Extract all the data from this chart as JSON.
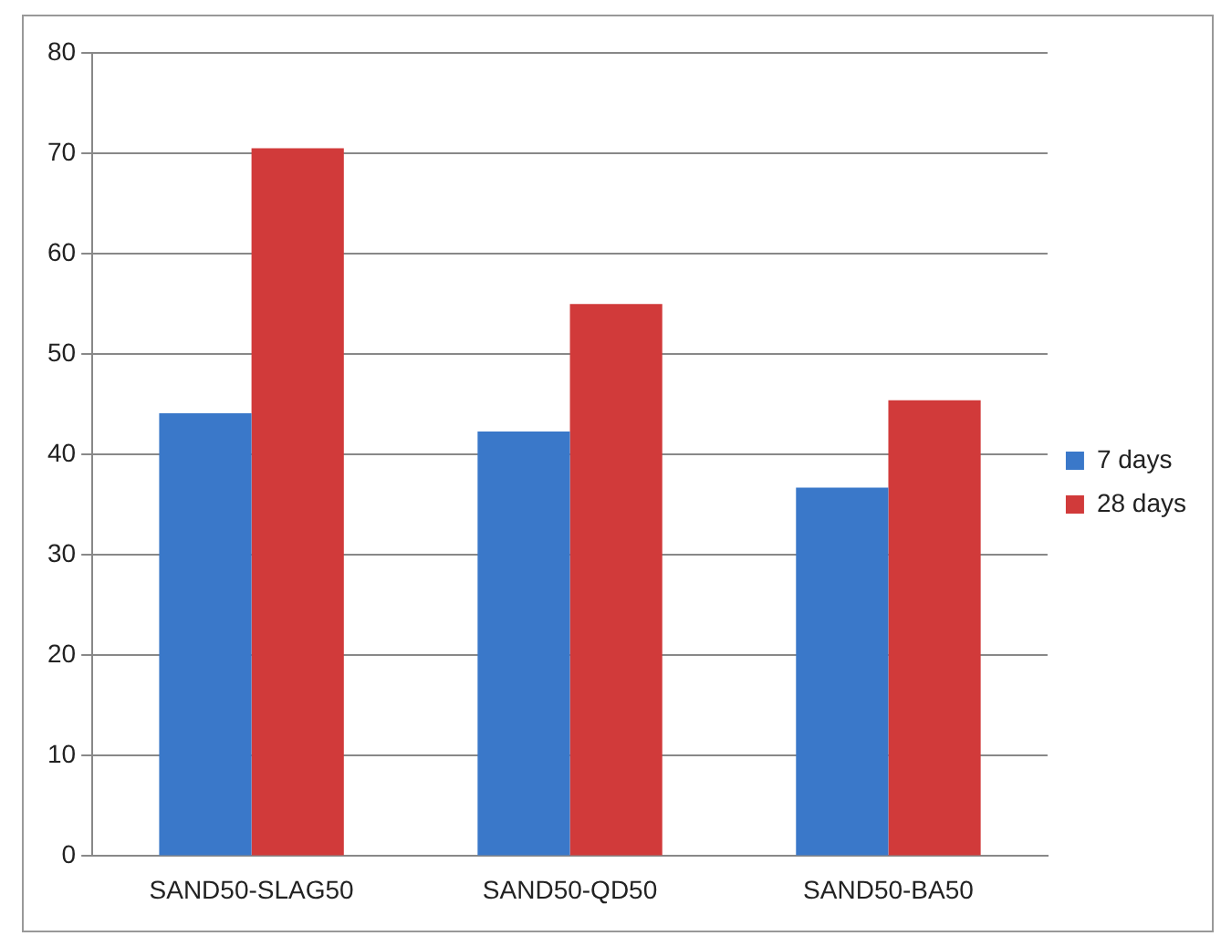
{
  "chart_data": {
    "type": "bar",
    "categories": [
      "SAND50-SLAG50",
      "SAND50-QD50",
      "SAND50-BA50"
    ],
    "series": [
      {
        "name": "7 days",
        "color": "#3a78c9",
        "values": [
          44.1,
          42.3,
          36.7
        ]
      },
      {
        "name": "28 days",
        "color": "#d13a3a",
        "values": [
          70.5,
          55.0,
          45.4
        ]
      }
    ],
    "ylim": [
      0,
      80
    ],
    "yticks": [
      0,
      10,
      20,
      30,
      40,
      50,
      60,
      70,
      80
    ],
    "grid": "y",
    "legend": "right"
  }
}
